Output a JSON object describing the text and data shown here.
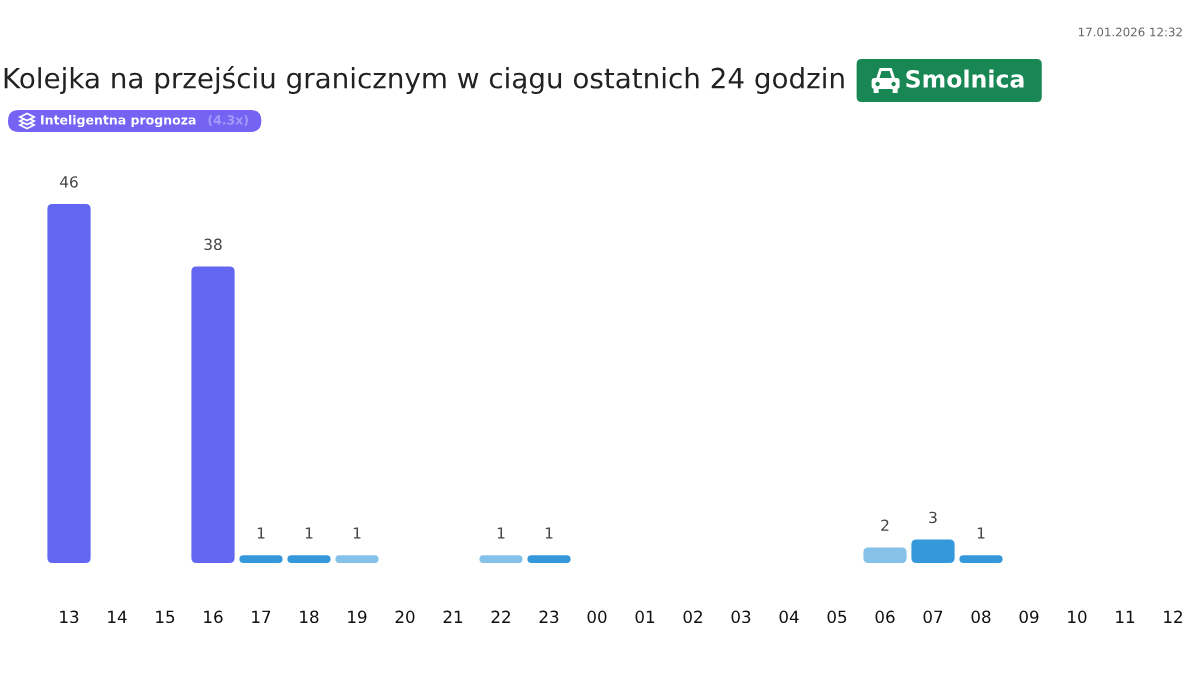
{
  "chart_data": {
    "type": "bar",
    "title": "Kolejka na przejściu granicznym w ciągu ostatnich 24 godzin",
    "subtitle": "Smolnica",
    "annotations": [
      "Inteligentna prognoza",
      "(4.3x)",
      "17.01.2026 12:32"
    ],
    "categories": [
      "13",
      "14",
      "15",
      "16",
      "17",
      "18",
      "19",
      "20",
      "21",
      "22",
      "23",
      "00",
      "01",
      "02",
      "03",
      "04",
      "05",
      "06",
      "07",
      "08",
      "09",
      "10",
      "11",
      "12"
    ],
    "values": [
      46,
      null,
      null,
      38,
      1,
      1,
      1,
      null,
      null,
      1,
      1,
      null,
      null,
      null,
      null,
      null,
      null,
      2,
      3,
      1,
      null,
      null,
      null,
      null
    ],
    "colors": [
      "#6366f1",
      null,
      null,
      "#6366f1",
      "#3498db",
      "#3498db",
      "#85c1e9",
      null,
      null,
      "#85c1e9",
      "#3498db",
      null,
      null,
      null,
      null,
      null,
      null,
      "#85c1e9",
      "#3498db",
      "#3498db",
      null,
      null,
      null,
      null
    ],
    "data_labels": true
  }
}
